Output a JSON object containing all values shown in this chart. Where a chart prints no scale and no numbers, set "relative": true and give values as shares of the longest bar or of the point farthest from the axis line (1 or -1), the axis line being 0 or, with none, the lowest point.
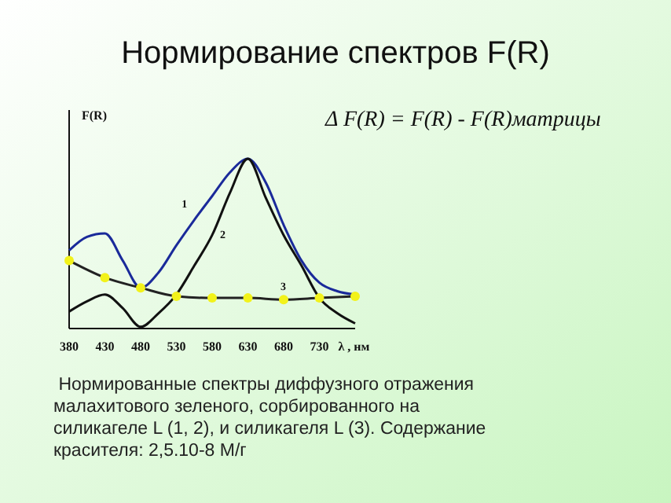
{
  "chart_data": {
    "type": "line",
    "title": "Нормирование спектров F(R)",
    "ylabel": "F(R)",
    "xlabel": "λ , нм",
    "relative": true,
    "annotations": [
      "Δ F(R) = F(R) - F(R)матрицы",
      " Нормированные спектры диффузного отражения малахитового зеленого, сорбированного на силикагеле L (1, 2), и силикагеля L (3). Содержание красителя: 2,5.10-8 М/г"
    ],
    "x": [
      380,
      405,
      430,
      455,
      480,
      505,
      530,
      555,
      580,
      605,
      630,
      655,
      680,
      705,
      730,
      755,
      780
    ],
    "xlim": [
      380,
      780
    ],
    "xticks": [
      380,
      430,
      480,
      530,
      580,
      630,
      680,
      730
    ],
    "line_style": "solid",
    "series": [
      {
        "name": "1",
        "color": "#1a2a9a",
        "marker": "none",
        "values": [
          0.46,
          0.54,
          0.56,
          0.4,
          0.24,
          0.33,
          0.49,
          0.64,
          0.78,
          0.92,
          1,
          0.86,
          0.61,
          0.4,
          0.27,
          0.22,
          0.2
        ]
      },
      {
        "name": "2",
        "color": "#111111",
        "marker": "none",
        "values": [
          0.1,
          0.16,
          0.2,
          0.12,
          0.01,
          0.09,
          0.2,
          0.37,
          0.55,
          0.8,
          1,
          0.77,
          0.55,
          0.37,
          0.18,
          0.09,
          0.03
        ]
      },
      {
        "name": "3",
        "color": "#222222",
        "marker": "circle",
        "x": [
          380,
          430,
          480,
          530,
          580,
          630,
          680,
          730,
          780
        ],
        "values": [
          0.4,
          0.3,
          0.24,
          0.19,
          0.18,
          0.18,
          0.17,
          0.18,
          0.19
        ]
      }
    ]
  }
}
